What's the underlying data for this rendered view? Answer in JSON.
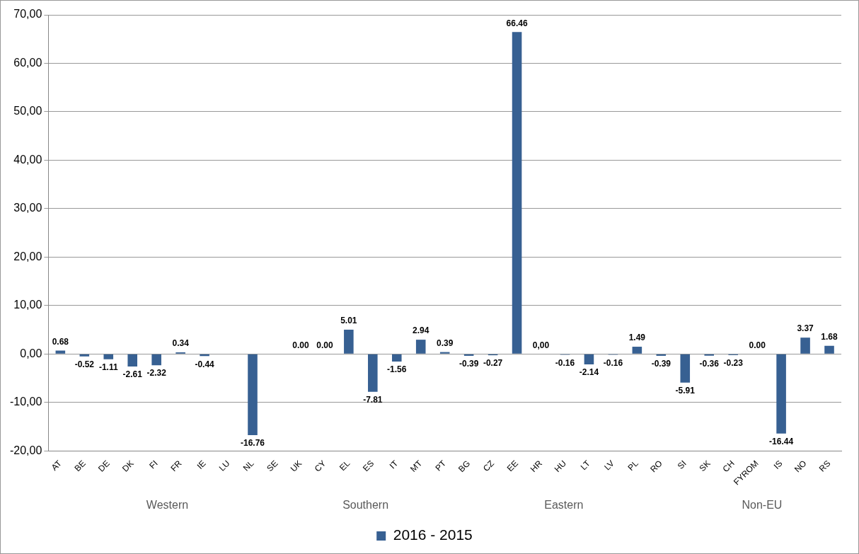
{
  "chart_data": {
    "type": "bar",
    "categories": [
      "AT",
      "BE",
      "DE",
      "DK",
      "FI",
      "FR",
      "IE",
      "LU",
      "NL",
      "SE",
      "UK",
      "CY",
      "EL",
      "ES",
      "IT",
      "MT",
      "PT",
      "BG",
      "CZ",
      "EE",
      "HR",
      "HU",
      "LT",
      "LV",
      "PL",
      "RO",
      "SI",
      "SK",
      "CH",
      "FYROM",
      "IS",
      "NO",
      "RS"
    ],
    "series": [
      {
        "name": "2016 - 2015",
        "color": "#376092",
        "values": [
          0.68,
          -0.52,
          -1.11,
          -2.61,
          -2.32,
          0.34,
          -0.44,
          null,
          -16.76,
          null,
          0.0,
          0.0,
          5.01,
          -7.81,
          -1.56,
          2.94,
          0.39,
          -0.39,
          -0.27,
          66.46,
          0.0,
          -0.16,
          -2.14,
          -0.16,
          1.49,
          -0.39,
          -5.91,
          -0.36,
          -0.23,
          0.0,
          -16.44,
          3.37,
          1.68
        ],
        "value_labels": [
          "0.68",
          "-0.52",
          "-1.11",
          "-2.61",
          "-2.32",
          "0.34",
          "-0.44",
          null,
          "-16.76",
          null,
          "0.00",
          "0.00",
          "5.01",
          "-7.81",
          "-1.56",
          "2.94",
          "0.39",
          "-0.39",
          "-0.27",
          "66.46",
          "0,00",
          "-0.16",
          "-2.14",
          "-0.16",
          "1.49",
          "-0.39",
          "-5.91",
          "-0.36",
          "-0.23",
          "0.00",
          "-16.44",
          "3.37",
          "1.68"
        ]
      }
    ],
    "ylim": [
      -20,
      70
    ],
    "yticks": [
      {
        "value": -20,
        "label": "-20,00"
      },
      {
        "value": -10,
        "label": "-10,00"
      },
      {
        "value": 0,
        "label": "0,00"
      },
      {
        "value": 10,
        "label": "10,00"
      },
      {
        "value": 20,
        "label": "20,00"
      },
      {
        "value": 30,
        "label": "30,00"
      },
      {
        "value": 40,
        "label": "40,00"
      },
      {
        "value": 50,
        "label": "50,00"
      },
      {
        "value": 60,
        "label": "60,00"
      },
      {
        "value": 70,
        "label": "70,00"
      }
    ],
    "annotations": [
      "Western",
      "Southern",
      "Eastern",
      "Non-EU"
    ],
    "grid": "y",
    "legend": "bottom"
  }
}
